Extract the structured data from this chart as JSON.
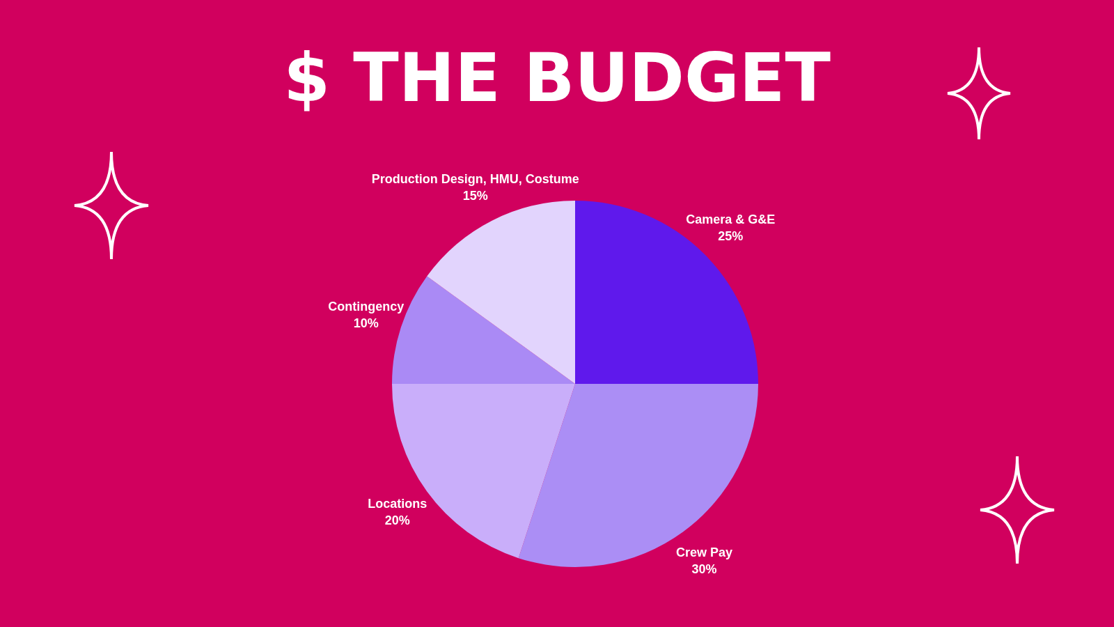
{
  "chart_data": {
    "type": "pie",
    "title": "$ THE BUDGET",
    "categories": [
      "Camera & G&E",
      "Crew Pay",
      "Locations",
      "Contingency",
      "Production Design, HMU, Costume"
    ],
    "values": [
      25,
      30,
      20,
      10,
      15
    ],
    "value_labels": [
      "25%",
      "30%",
      "20%",
      "10%",
      "15%"
    ],
    "colors": [
      "#5f19ec",
      "#ab8ef5",
      "#c9aefa",
      "#aa8af5",
      "#e2d4fd"
    ],
    "legend": false
  }
}
